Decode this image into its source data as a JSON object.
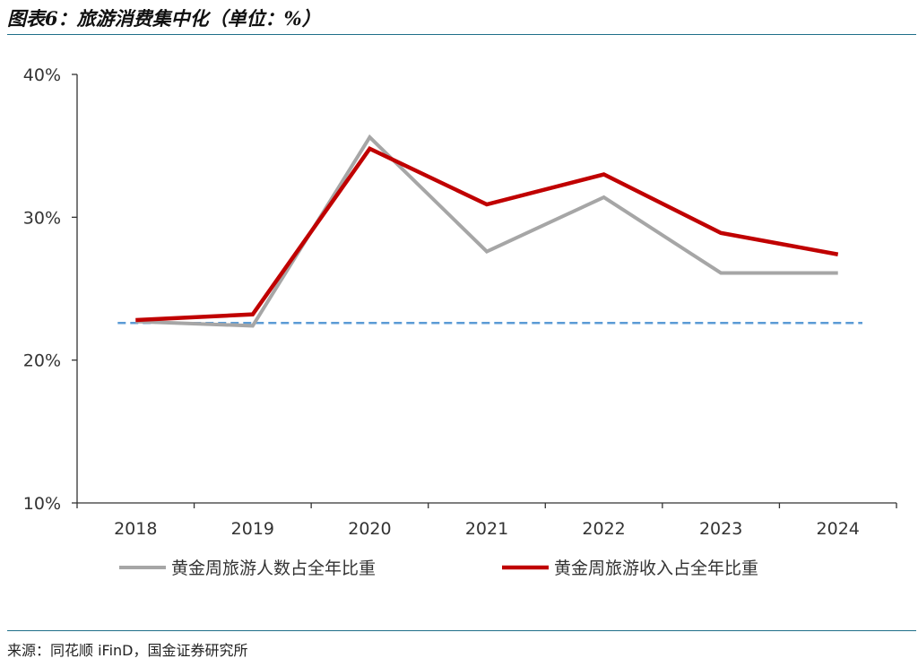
{
  "title": "图表6：旅游消费集中化（单位：%）",
  "source": "来源：同花顺 iFinD，国金证券研究所",
  "chart_data": {
    "type": "line",
    "title": "旅游消费集中化（单位：%）",
    "categories": [
      "2018",
      "2019",
      "2020",
      "2021",
      "2022",
      "2023",
      "2024"
    ],
    "ylim": [
      10,
      40
    ],
    "yticks": [
      10,
      20,
      30,
      40
    ],
    "ytick_labels": [
      "10%",
      "20%",
      "30%",
      "40%"
    ],
    "grid": false,
    "legend_position": "bottom",
    "series": [
      {
        "name": "黄金周旅游人数占全年比重",
        "color": "#a6a6a6",
        "values": [
          22.7,
          22.4,
          35.6,
          27.6,
          31.4,
          26.1,
          26.1
        ]
      },
      {
        "name": "黄金周旅游收入占全年比重",
        "color": "#c00000",
        "values": [
          22.8,
          23.2,
          34.8,
          30.9,
          33.0,
          28.9,
          27.4
        ]
      }
    ],
    "reference_line": {
      "value": 22.6,
      "style": "dashed",
      "color": "#5b9bd5"
    }
  }
}
